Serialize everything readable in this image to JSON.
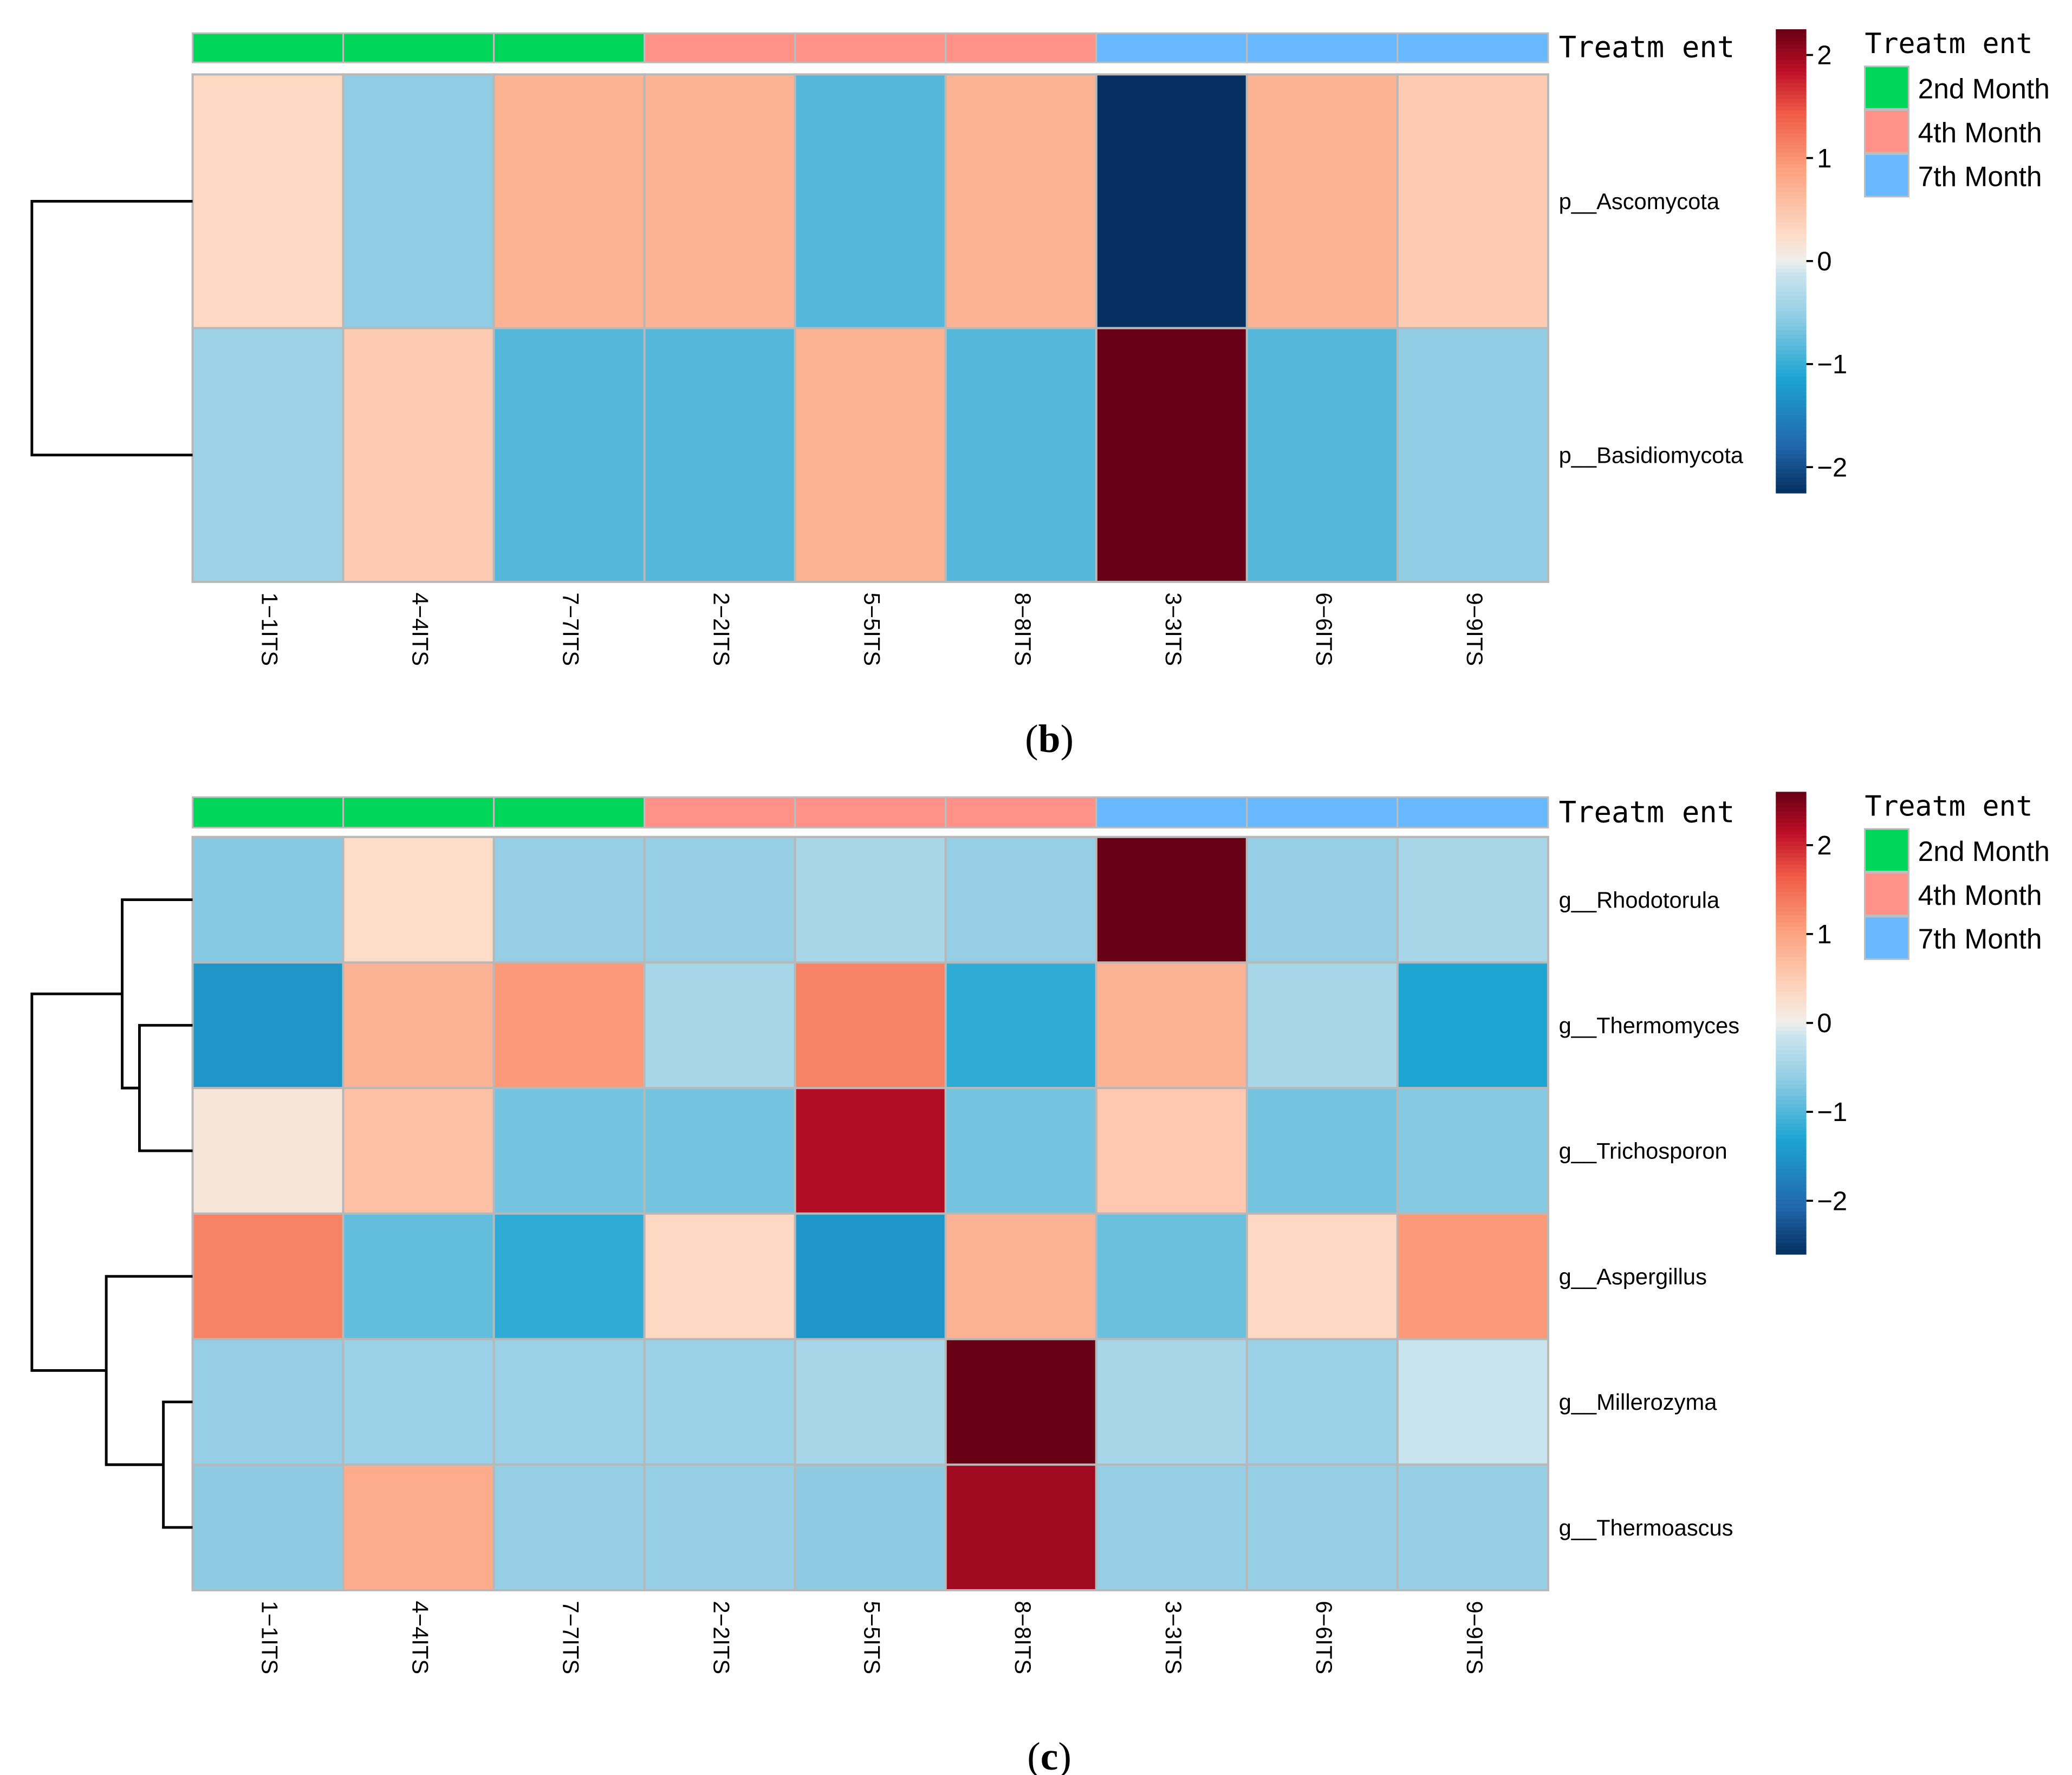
{
  "treatment_title": "Treatm ent",
  "legend_title": "Treatm ent",
  "treatments": [
    {
      "label": "2nd Month",
      "color": "#00D65A"
    },
    {
      "label": "4th Month",
      "color": "#FF9188"
    },
    {
      "label": "7th Month",
      "color": "#68B8FF"
    }
  ],
  "chart_data": [
    {
      "type": "heatmap",
      "panel_label_open": "(",
      "panel_label_letter": "b",
      "panel_label_close": ")",
      "columns": [
        "1−1ITS",
        "4−4ITS",
        "7−7ITS",
        "2−2ITS",
        "5−5ITS",
        "8−8ITS",
        "3−3ITS",
        "6−6ITS",
        "9−9ITS"
      ],
      "column_treatment": [
        0,
        0,
        0,
        1,
        1,
        1,
        2,
        2,
        2
      ],
      "rows": [
        "p__Ascomycota",
        "p__Basidiomycota"
      ],
      "values": [
        [
          0.3,
          -0.55,
          0.7,
          0.7,
          -0.85,
          0.7,
          -2.25,
          0.7,
          0.45
        ],
        [
          -0.45,
          0.45,
          -0.85,
          -0.85,
          0.7,
          -0.85,
          2.25,
          -0.85,
          -0.55
        ]
      ],
      "color_range": [
        -2.25,
        2.25
      ],
      "colorbar_ticks": [
        "2",
        "1",
        "0",
        "−1",
        "−2"
      ],
      "colorbar_tick_values": [
        2,
        1,
        0,
        -1,
        -2
      ],
      "row_dendrogram": "two leaves joined at root"
    },
    {
      "type": "heatmap",
      "panel_label_open": "(",
      "panel_label_letter": "c",
      "panel_label_close": ")",
      "columns": [
        "1−1ITS",
        "4−4ITS",
        "7−7ITS",
        "2−2ITS",
        "5−5ITS",
        "8−8ITS",
        "3−3ITS",
        "6−6ITS",
        "9−9ITS"
      ],
      "column_treatment": [
        0,
        0,
        0,
        1,
        1,
        1,
        2,
        2,
        2
      ],
      "rows": [
        "g__Rhodotorula",
        "g__Thermomyces",
        "g__Trichosporon",
        "g__Aspergillus",
        "g__Millerozyma",
        "g__Thermoascus"
      ],
      "values": [
        [
          -0.7,
          0.3,
          -0.6,
          -0.6,
          -0.45,
          -0.6,
          2.6,
          -0.6,
          -0.45
        ],
        [
          -1.5,
          0.8,
          1.1,
          -0.45,
          1.3,
          -1.2,
          0.8,
          -0.45,
          -1.3
        ],
        [
          0.15,
          0.65,
          -0.8,
          -0.8,
          2.2,
          -0.8,
          0.55,
          -0.8,
          -0.7
        ],
        [
          1.3,
          -0.9,
          -1.2,
          0.35,
          -1.5,
          0.8,
          -0.85,
          0.35,
          1.1
        ],
        [
          -0.6,
          -0.55,
          -0.55,
          -0.55,
          -0.45,
          2.6,
          -0.45,
          -0.55,
          -0.15
        ],
        [
          -0.65,
          0.9,
          -0.6,
          -0.6,
          -0.65,
          2.3,
          -0.6,
          -0.6,
          -0.6
        ]
      ],
      "color_range": [
        -2.6,
        2.6
      ],
      "colorbar_ticks": [
        "2",
        "1",
        "0",
        "−1",
        "−2"
      ],
      "colorbar_tick_values": [
        2,
        1,
        0,
        -1,
        -2
      ],
      "row_dendrogram": "Rhodotorula joins (Thermomyces, Trichosporon); Aspergillus joins (Millerozyma, Thermoascus); two clusters join at root"
    }
  ]
}
